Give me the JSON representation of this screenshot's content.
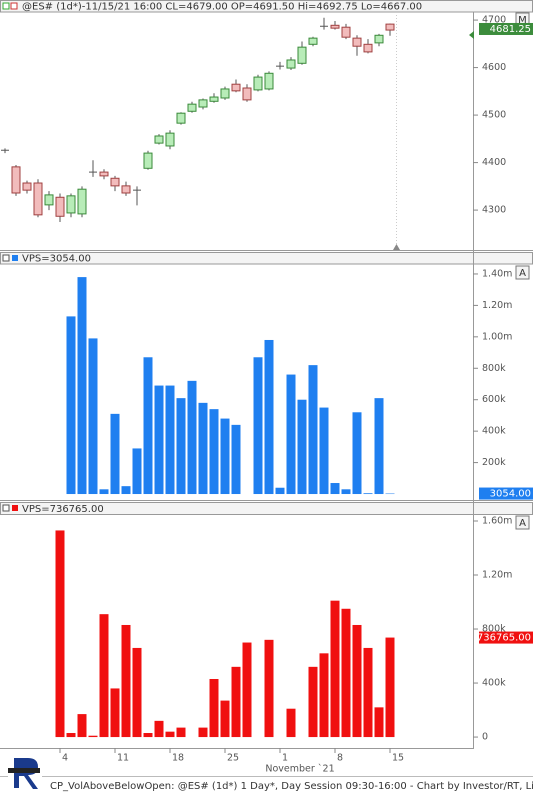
{
  "chart_data": [
    {
      "type": "candlestick",
      "title": "@ES# (1d*)-11/15/21 16:00 CL=4679.00 OP=4691.50 Hi=4692.75 Lo=4667.00",
      "button": "M",
      "up_color": "#b8ecb8",
      "down_color": "#f2bcbc",
      "open": [
        4426,
        4391,
        4357,
        4357,
        4311,
        4327,
        4294,
        4292,
        4380,
        4380,
        4367,
        4351,
        4342,
        4388,
        4441,
        4435,
        4483,
        4508,
        4517,
        4529,
        4536,
        4565,
        4557,
        4553,
        4555,
        4603,
        4599,
        4609,
        4649,
        4687,
        4689,
        4685,
        4662,
        4649,
        4652,
        4691.5
      ],
      "high": [
        4430,
        4395,
        4362,
        4365,
        4340,
        4335,
        4335,
        4350,
        4405,
        4386,
        4372,
        4360,
        4350,
        4425,
        4460,
        4468,
        4506,
        4528,
        4535,
        4546,
        4560,
        4575,
        4565,
        4585,
        4592,
        4612,
        4622,
        4655,
        4665,
        4705,
        4698,
        4692,
        4668,
        4660,
        4671,
        4692.75
      ],
      "low": [
        4420,
        4330,
        4335,
        4285,
        4300,
        4275,
        4285,
        4285,
        4370,
        4365,
        4340,
        4330,
        4310,
        4385,
        4438,
        4428,
        4480,
        4505,
        4512,
        4526,
        4532,
        4548,
        4528,
        4550,
        4552,
        4596,
        4595,
        4606,
        4645,
        4680,
        4680,
        4660,
        4625,
        4630,
        4645,
        4667
      ],
      "close": [
        4426,
        4336,
        4342,
        4290,
        4332,
        4287,
        4330,
        4344,
        4380,
        4372,
        4351,
        4336,
        4342,
        4420,
        4456,
        4462,
        4504,
        4523,
        4532,
        4538,
        4555,
        4551,
        4532,
        4580,
        4588,
        4603,
        4616,
        4643,
        4662,
        4687,
        4683,
        4664,
        4645,
        4633,
        4668,
        4679
      ],
      "ylim": [
        4216,
        4717
      ],
      "yticks": [
        4300,
        4400,
        4500,
        4600,
        4700
      ],
      "last": {
        "value": 4681.25,
        "label": "4681.25"
      },
      "last_color": "#3c8c3c"
    },
    {
      "type": "bar",
      "title": "VPS=3054.00",
      "button": "A",
      "color": "#1f7ff0",
      "values": [
        null,
        null,
        null,
        null,
        null,
        null,
        1130000,
        1380000,
        990000,
        30000,
        510000,
        50000,
        290000,
        870000,
        690000,
        690000,
        610000,
        720000,
        580000,
        540000,
        480000,
        440000,
        0,
        870000,
        980000,
        40000,
        760000,
        600000,
        820000,
        550000,
        70000,
        30000,
        520000,
        5000,
        610000,
        3054
      ],
      "ylim": [
        -38000,
        1457000
      ],
      "yticks": [
        {
          "value": 200000,
          "label": "200k"
        },
        {
          "value": 400000,
          "label": "400k"
        },
        {
          "value": 600000,
          "label": "600k"
        },
        {
          "value": 800000,
          "label": "800k"
        },
        {
          "value": 1000000,
          "label": "1.00m"
        },
        {
          "value": 1200000,
          "label": "1.20m"
        },
        {
          "value": 1400000,
          "label": "1.40m"
        }
      ],
      "last": {
        "value": 3054,
        "label": "3054.00"
      }
    },
    {
      "type": "bar",
      "title": "VPS=736765.00",
      "button": "A",
      "color": "#f01010",
      "values": [
        null,
        null,
        null,
        null,
        null,
        1530000,
        30000,
        170000,
        10000,
        910000,
        360000,
        830000,
        660000,
        30000,
        120000,
        40000,
        70000,
        0,
        70000,
        430000,
        270000,
        520000,
        700000,
        0,
        720000,
        0,
        210000,
        0,
        520000,
        620000,
        1010000,
        950000,
        830000,
        660000,
        220000,
        736765
      ],
      "ylim": [
        -81000,
        1637000
      ],
      "yticks": [
        0,
        {
          "value": 400000,
          "label": "400k"
        },
        {
          "value": 800000,
          "label": "800k"
        },
        {
          "value": 1200000,
          "label": "1.20m"
        },
        {
          "value": 1600000,
          "label": "1.60m"
        }
      ],
      "last": {
        "value": 736765,
        "label": "736765.00"
      },
      "categories": [
        null,
        null,
        null,
        null,
        null,
        "4",
        null,
        null,
        null,
        null,
        "11",
        null,
        null,
        null,
        null,
        "18",
        null,
        null,
        null,
        null,
        "25",
        null,
        null,
        null,
        null,
        "1",
        null,
        null,
        null,
        null,
        "8",
        null,
        null,
        null,
        null,
        "15"
      ],
      "x_label": "November `21"
    }
  ],
  "footer": "CP_VolAboveBelowOpen: @ES# (1d*) 1 Day*, Day Session 09:30-16:00 - Chart by Investor/RT, Lin"
}
